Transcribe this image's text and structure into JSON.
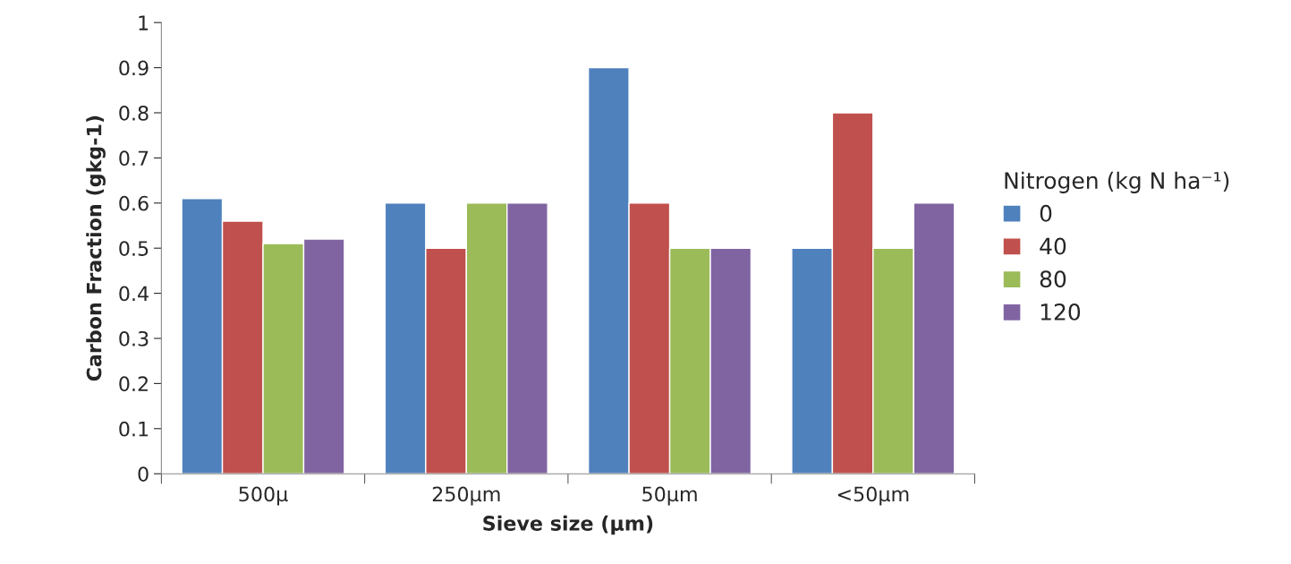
{
  "chart_data": {
    "type": "bar",
    "xlabel": "Sieve size (µm)",
    "ylabel": "Carbon Fraction (gkg-1)",
    "legend_title": "Nitrogen (kg N ha⁻¹)",
    "categories": [
      "500µ",
      "250µm",
      "50µm",
      "<50µm"
    ],
    "series": [
      {
        "name": "0",
        "color": "#4f81bd",
        "values": [
          0.61,
          0.6,
          0.9,
          0.5
        ]
      },
      {
        "name": "40",
        "color": "#c0504d",
        "values": [
          0.56,
          0.5,
          0.6,
          0.8
        ]
      },
      {
        "name": "80",
        "color": "#9bbb59",
        "values": [
          0.51,
          0.6,
          0.5,
          0.5
        ]
      },
      {
        "name": "120",
        "color": "#8064a2",
        "values": [
          0.52,
          0.6,
          0.5,
          0.6
        ]
      }
    ],
    "ylim": [
      0,
      1
    ],
    "yticks": [
      0,
      0.1,
      0.2,
      0.3,
      0.4,
      0.5,
      0.6,
      0.7,
      0.8,
      0.9,
      1
    ],
    "grid": false,
    "legend": "right"
  }
}
